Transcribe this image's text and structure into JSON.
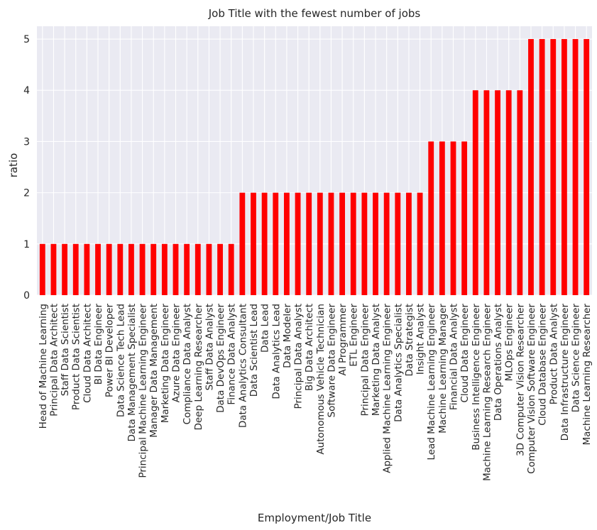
{
  "chart_data": {
    "type": "bar",
    "title": "Job Title with the fewest number of jobs",
    "xlabel": "Employment/Job Title",
    "ylabel": "ratio",
    "ylim": [
      0,
      5.25
    ],
    "yticks": [
      "0",
      "1",
      "2",
      "3",
      "4",
      "5"
    ],
    "grid": true,
    "legend": "none",
    "bar_color": "#ff0000",
    "background_color": "#eaeaf2",
    "grid_color": "#ffffff",
    "categories": [
      "Head of Machine Learning",
      "Principal Data Architect",
      "Staff Data Scientist",
      "Product Data Scientist",
      "Cloud Data Architect",
      "BI Data Engineer",
      "Power BI Developer",
      "Data Science Tech Lead",
      "Data Management Specialist",
      "Principal Machine Learning Engineer",
      "Manager Data Management",
      "Marketing Data Engineer",
      "Azure Data Engineer",
      "Compliance Data Analyst",
      "Deep Learning Researcher",
      "Staff Data Analyst",
      "Data DevOps Engineer",
      "Finance Data Analyst",
      "Data Analytics Consultant",
      "Data Scientist Lead",
      "Data Lead",
      "Data Analytics Lead",
      "Data Modeler",
      "Principal Data Analyst",
      "Big Data Architect",
      "Autonomous Vehicle Technician",
      "Software Data Engineer",
      "AI Programmer",
      "ETL Engineer",
      "Principal Data Engineer",
      "Marketing Data Analyst",
      "Applied Machine Learning Engineer",
      "Data Analytics Specialist",
      "Data Strategist",
      "Insight Analyst",
      "Lead Machine Learning Engineer",
      "Machine Learning Manager",
      "Financial Data Analyst",
      "Cloud Data Engineer",
      "Business Intelligence Engineer",
      "Machine Learning Research Engineer",
      "Data Operations Analyst",
      "MLOps Engineer",
      "3D Computer Vision Researcher",
      "Computer Vision Software Engineer",
      "Cloud Database Engineer",
      "Product Data Analyst",
      "Data Infrastructure Engineer",
      "Data Science Engineer",
      "Machine Learning Researcher"
    ],
    "values": [
      1,
      1,
      1,
      1,
      1,
      1,
      1,
      1,
      1,
      1,
      1,
      1,
      1,
      1,
      1,
      1,
      1,
      1,
      2,
      2,
      2,
      2,
      2,
      2,
      2,
      2,
      2,
      2,
      2,
      2,
      2,
      2,
      2,
      2,
      2,
      3,
      3,
      3,
      3,
      4,
      4,
      4,
      4,
      4,
      5,
      5,
      5,
      5,
      5,
      5
    ]
  }
}
